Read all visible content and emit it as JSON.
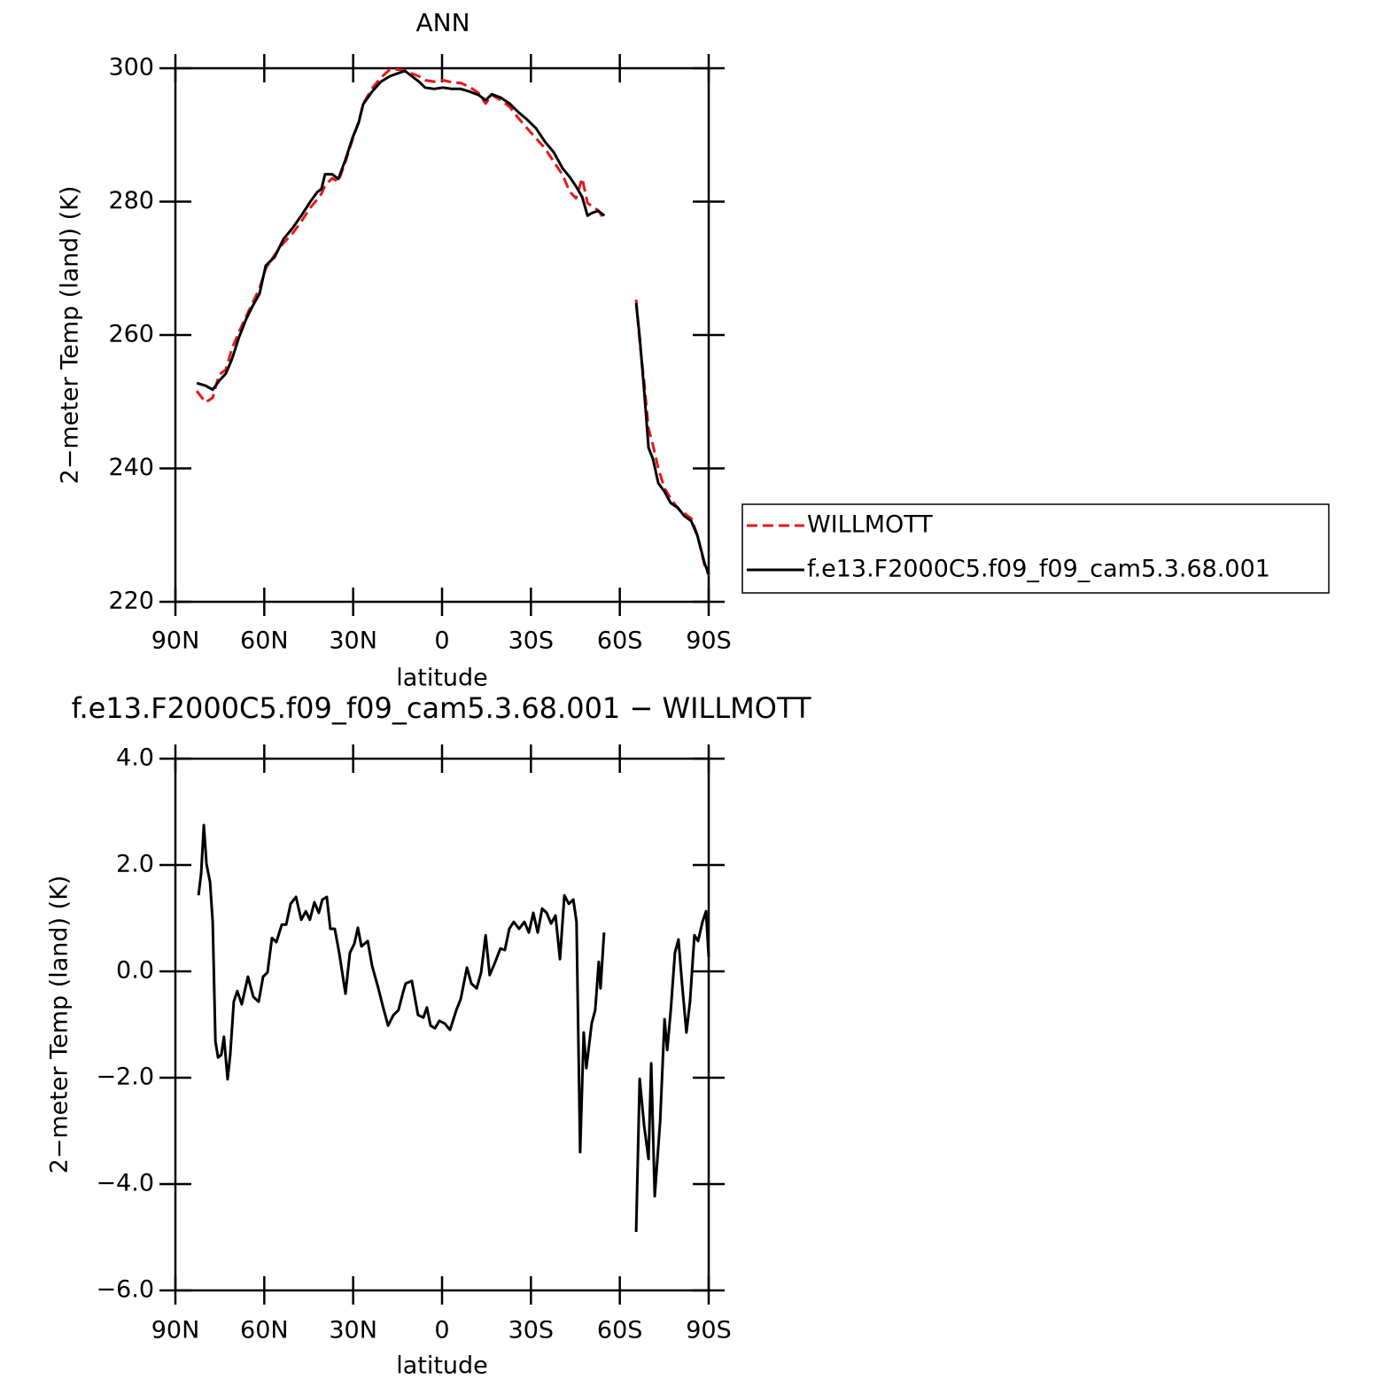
{
  "chart_data": [
    {
      "type": "line",
      "title": "ANN",
      "x_label": "latitude",
      "y_label": "2−meter Temp (land) (K)",
      "x": [
        82.8,
        79.8,
        77.4,
        75.3,
        73,
        70.9,
        68.5,
        66.1,
        64,
        61.6,
        59.5,
        56.5,
        53.5,
        50.5,
        47.5,
        44.6,
        42.2,
        40.7,
        39.5,
        37.1,
        35,
        32.6,
        30.2,
        28.1,
        26.6,
        23.6,
        20.6,
        17.6,
        14.6,
        12.5,
        10.2,
        7.8,
        5.7,
        2.7,
        -0.3,
        -3.3,
        -6.3,
        -9.3,
        -12.3,
        -14.7,
        -16.8,
        -19.8,
        -22.8,
        -25.8,
        -28.7,
        -31.7,
        -34.7,
        -37.7,
        -40.7,
        -43.1,
        -45.2,
        -47.3,
        -49.1,
        -50.6,
        -52.7,
        -54.8,
        -60,
        -65.5,
        -66.7,
        -68.2,
        -69.7,
        -71.2,
        -73,
        -75.1,
        -77.2,
        -79.6,
        -81.7,
        -84.1,
        -86.2,
        -88.6,
        -90
      ],
      "series": [
        {
          "name": "WILLMOTT",
          "color": "#e31a1c",
          "linestyle": "dashed",
          "values": [
            251.6,
            249.9,
            250.6,
            254,
            254.8,
            258,
            260.5,
            262.8,
            264.8,
            267,
            270,
            272,
            273.8,
            275.2,
            277,
            279,
            280.3,
            281.2,
            282.4,
            283.5,
            283,
            286,
            289.3,
            292,
            294.7,
            297,
            298.6,
            299.8,
            299.8,
            299.7,
            299.2,
            298.8,
            298.2,
            298,
            298.2,
            297.9,
            297.8,
            297.2,
            296.3,
            294.7,
            296,
            295.2,
            294.2,
            292.5,
            291,
            289.5,
            288,
            286,
            284,
            281.5,
            280.5,
            283.5,
            279.8,
            279.3,
            278.7,
            277.3,
            null,
            265.3,
            259,
            253,
            246,
            243.5,
            240,
            237,
            235.5,
            234,
            233.3,
            232.5,
            230,
            225.5,
            224
          ]
        },
        {
          "name": "f.e13.F2000C5.f09_f09_cam5.3.68.001",
          "color": "#000000",
          "linestyle": "solid",
          "values": [
            252.8,
            252.4,
            251.8,
            253.1,
            254.2,
            256.4,
            259.7,
            262.4,
            264.3,
            266.2,
            270.4,
            271.7,
            274.4,
            276,
            277.9,
            279.9,
            281.4,
            281.9,
            284.1,
            284.1,
            283.4,
            286.3,
            289.6,
            291.9,
            294.6,
            296.5,
            298,
            298.8,
            299.3,
            299.6,
            298.8,
            298,
            297.1,
            296.9,
            297.1,
            296.9,
            296.9,
            296.5,
            296,
            295.2,
            296.1,
            295.6,
            294.7,
            293.4,
            292.3,
            291,
            289,
            287.4,
            285,
            283.7,
            282.3,
            280.7,
            277.9,
            278.3,
            278.6,
            277.9,
            null,
            264.8,
            259.7,
            251.8,
            243.1,
            241.4,
            237.8,
            236.5,
            234.8,
            234.1,
            232.9,
            232.1,
            229.9,
            225.8,
            224.1
          ]
        }
      ],
      "xlim": [
        90,
        -90
      ],
      "xticks": [
        {
          "value": 90,
          "label": "90N"
        },
        {
          "value": 60,
          "label": "60N"
        },
        {
          "value": 30,
          "label": "30N"
        },
        0,
        {
          "value": -30,
          "label": "30S"
        },
        {
          "value": -60,
          "label": "60S"
        },
        {
          "value": -90,
          "label": "90S"
        }
      ],
      "ylim": [
        220,
        300
      ],
      "yticks": [
        220,
        240,
        260,
        280,
        300
      ],
      "legend": "right"
    },
    {
      "type": "line",
      "title": "f.e13.F2000C5.f09_f09_cam5.3.68.001 − WILLMOTT",
      "x_label": "latitude",
      "y_label": "2−meter Temp (land) (K)",
      "x": [
        82.2,
        81.3,
        80.4,
        79.5,
        78.3,
        77.4,
        76.5,
        75.6,
        74.5,
        73.6,
        72.4,
        71.5,
        70.3,
        69.1,
        67.6,
        65.5,
        63.7,
        61.9,
        60.4,
        58.9,
        57.4,
        55.9,
        54.1,
        52.6,
        51.1,
        49.3,
        47.5,
        46.0,
        44.6,
        43.1,
        41.6,
        40.4,
        38.9,
        37.7,
        36.2,
        34.7,
        32.6,
        31.1,
        29.6,
        28.4,
        27.2,
        25.1,
        23.6,
        21.5,
        20.0,
        18.2,
        16.4,
        14.7,
        13.2,
        12.3,
        10.2,
        8.1,
        6.3,
        5.1,
        3.9,
        2.4,
        0.9,
        -0.9,
        -2.7,
        -4.8,
        -6.3,
        -8.4,
        -9.9,
        -11.7,
        -13.2,
        -14.7,
        -16.1,
        -17.6,
        -19.7,
        -21.2,
        -22.7,
        -24.2,
        -26.0,
        -27.8,
        -29.3,
        -30.8,
        -32.3,
        -33.8,
        -35.3,
        -36.8,
        -38.3,
        -39.8,
        -41.3,
        -42.8,
        -44.3,
        -45.4,
        -46.6,
        -47.8,
        -48.7,
        -50.5,
        -51.7,
        -52.9,
        -53.5,
        -54.7,
        -60,
        -65.5,
        -66.7,
        -68.2,
        -69.7,
        -70.6,
        -71.8,
        -73.6,
        -75.1,
        -76.0,
        -77.2,
        -78.6,
        -79.8,
        -81.0,
        -82.5,
        -83.7,
        -85.2,
        -86.4,
        -87.9,
        -89.1,
        -90
      ],
      "values": [
        1.43,
        1.85,
        2.75,
        2.02,
        1.68,
        0.93,
        -1.32,
        -1.62,
        -1.57,
        -1.23,
        -2.03,
        -1.57,
        -0.57,
        -0.37,
        -0.62,
        -0.1,
        -0.48,
        -0.57,
        -0.1,
        -0.02,
        0.63,
        0.55,
        0.88,
        0.88,
        1.27,
        1.4,
        0.97,
        1.13,
        0.97,
        1.3,
        1.1,
        1.35,
        1.4,
        0.8,
        0.8,
        0.35,
        -0.42,
        0.35,
        0.52,
        0.82,
        0.47,
        0.57,
        0.1,
        -0.32,
        -0.65,
        -1.02,
        -0.82,
        -0.73,
        -0.4,
        -0.23,
        -0.18,
        -0.82,
        -0.87,
        -0.68,
        -1.02,
        -1.07,
        -0.93,
        -0.98,
        -1.1,
        -0.73,
        -0.52,
        0.07,
        -0.23,
        -0.32,
        -0.02,
        0.68,
        -0.07,
        0.13,
        0.43,
        0.4,
        0.8,
        0.93,
        0.8,
        0.93,
        0.73,
        1.1,
        0.73,
        1.18,
        1.1,
        0.9,
        1.05,
        0.23,
        1.43,
        1.27,
        1.35,
        0.93,
        -3.4,
        -1.15,
        -1.82,
        -0.98,
        -0.73,
        0.18,
        -0.32,
        0.73,
        null,
        -4.9,
        -2.02,
        -2.9,
        -3.53,
        -1.73,
        -4.23,
        -2.82,
        -0.9,
        -1.48,
        -0.73,
        0.35,
        0.6,
        -0.23,
        -1.15,
        -0.57,
        0.68,
        0.57,
        0.93,
        1.13,
        0.27
      ],
      "color": "#000000",
      "xlim": [
        90,
        -90
      ],
      "xticks": [
        {
          "value": 90,
          "label": "90N"
        },
        {
          "value": 60,
          "label": "60N"
        },
        {
          "value": 30,
          "label": "30N"
        },
        0,
        {
          "value": -30,
          "label": "30S"
        },
        {
          "value": -60,
          "label": "60S"
        },
        {
          "value": -90,
          "label": "90S"
        }
      ],
      "ylim": [
        -6,
        4
      ],
      "yticks": [
        {
          "value": -6,
          "label": "−6.0"
        },
        {
          "value": -4,
          "label": "−4.0"
        },
        {
          "value": -2,
          "label": "−2.0"
        },
        {
          "value": 0,
          "label": "0.0"
        },
        {
          "value": 2,
          "label": "2.0"
        },
        {
          "value": 4,
          "label": "4.0"
        }
      ]
    }
  ]
}
